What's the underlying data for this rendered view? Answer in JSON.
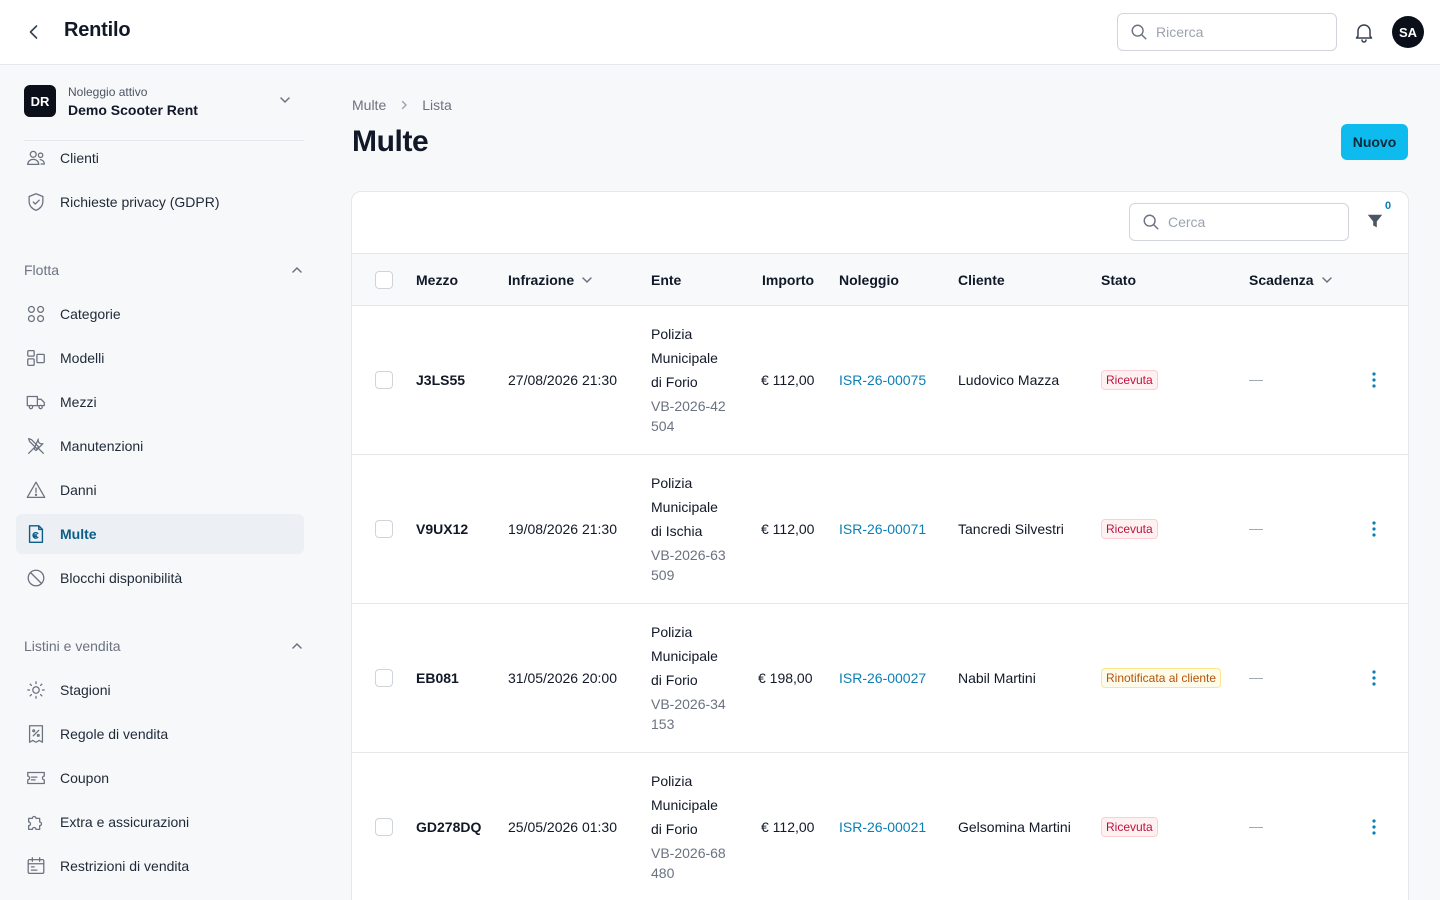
{
  "app": {
    "title": "Rentilo"
  },
  "topbar": {
    "search_placeholder": "Ricerca",
    "avatar_initials": "SA"
  },
  "sidebar": {
    "rental": {
      "badge": "DR",
      "caption": "Noleggio attivo",
      "name": "Demo Scooter Rent"
    },
    "top_items": [
      {
        "label": "Clienti",
        "icon": "users-icon"
      },
      {
        "label": "Richieste privacy (GDPR)",
        "icon": "shield-check-icon"
      }
    ],
    "sections": [
      {
        "title": "Flotta",
        "items": [
          {
            "label": "Categorie",
            "icon": "grid-icon"
          },
          {
            "label": "Modelli",
            "icon": "layout-icon"
          },
          {
            "label": "Mezzi",
            "icon": "truck-icon"
          },
          {
            "label": "Manutenzioni",
            "icon": "tools-icon"
          },
          {
            "label": "Danni",
            "icon": "warning-icon"
          },
          {
            "label": "Multe",
            "icon": "euro-document-icon",
            "active": true
          },
          {
            "label": "Blocchi disponibilità",
            "icon": "ban-icon"
          }
        ]
      },
      {
        "title": "Listini e vendita",
        "items": [
          {
            "label": "Stagioni",
            "icon": "sun-icon"
          },
          {
            "label": "Regole di vendita",
            "icon": "receipt-percent-icon"
          },
          {
            "label": "Coupon",
            "icon": "ticket-icon"
          },
          {
            "label": "Extra e assicurazioni",
            "icon": "puzzle-icon"
          },
          {
            "label": "Restrizioni di vendita",
            "icon": "calendar-icon"
          }
        ]
      }
    ]
  },
  "breadcrumb": {
    "parent": "Multe",
    "current": "Lista"
  },
  "page": {
    "title": "Multe",
    "new_button": "Nuovo"
  },
  "table": {
    "search_placeholder": "Cerca",
    "filter_count": "0",
    "columns": [
      "Mezzo",
      "Infrazione",
      "Ente",
      "Importo",
      "Noleggio",
      "Cliente",
      "Stato",
      "Scadenza"
    ],
    "rows": [
      {
        "mezzo": "J3LS55",
        "infrazione": "27/08/2026 21:30",
        "ente": "Polizia Municipale di Forio",
        "ref": "VB-2026-42504",
        "importo": "€ 112,00",
        "noleggio": "ISR-26-00075",
        "cliente": "Ludovico Mazza",
        "stato": "Ricevuta",
        "stato_tone": "red",
        "scadenza": "—"
      },
      {
        "mezzo": "V9UX12",
        "infrazione": "19/08/2026 21:30",
        "ente": "Polizia Municipale di Ischia",
        "ref": "VB-2026-63509",
        "importo": "€ 112,00",
        "noleggio": "ISR-26-00071",
        "cliente": "Tancredi Silvestri",
        "stato": "Ricevuta",
        "stato_tone": "red",
        "scadenza": "—"
      },
      {
        "mezzo": "EB081",
        "infrazione": "31/05/2026 20:00",
        "ente": "Polizia Municipale di Forio",
        "ref": "VB-2026-34153",
        "importo": "€ 198,00",
        "noleggio": "ISR-26-00027",
        "cliente": "Nabil Martini",
        "stato": "Rinotificata al cliente",
        "stato_tone": "amber",
        "scadenza": "—"
      },
      {
        "mezzo": "GD278DQ",
        "infrazione": "25/05/2026 01:30",
        "ente": "Polizia Municipale di Forio",
        "ref": "VB-2026-68480",
        "importo": "€ 112,00",
        "noleggio": "ISR-26-00021",
        "cliente": "Gelsomina Martini",
        "stato": "Ricevuta",
        "stato_tone": "red",
        "scadenza": "—"
      }
    ]
  }
}
